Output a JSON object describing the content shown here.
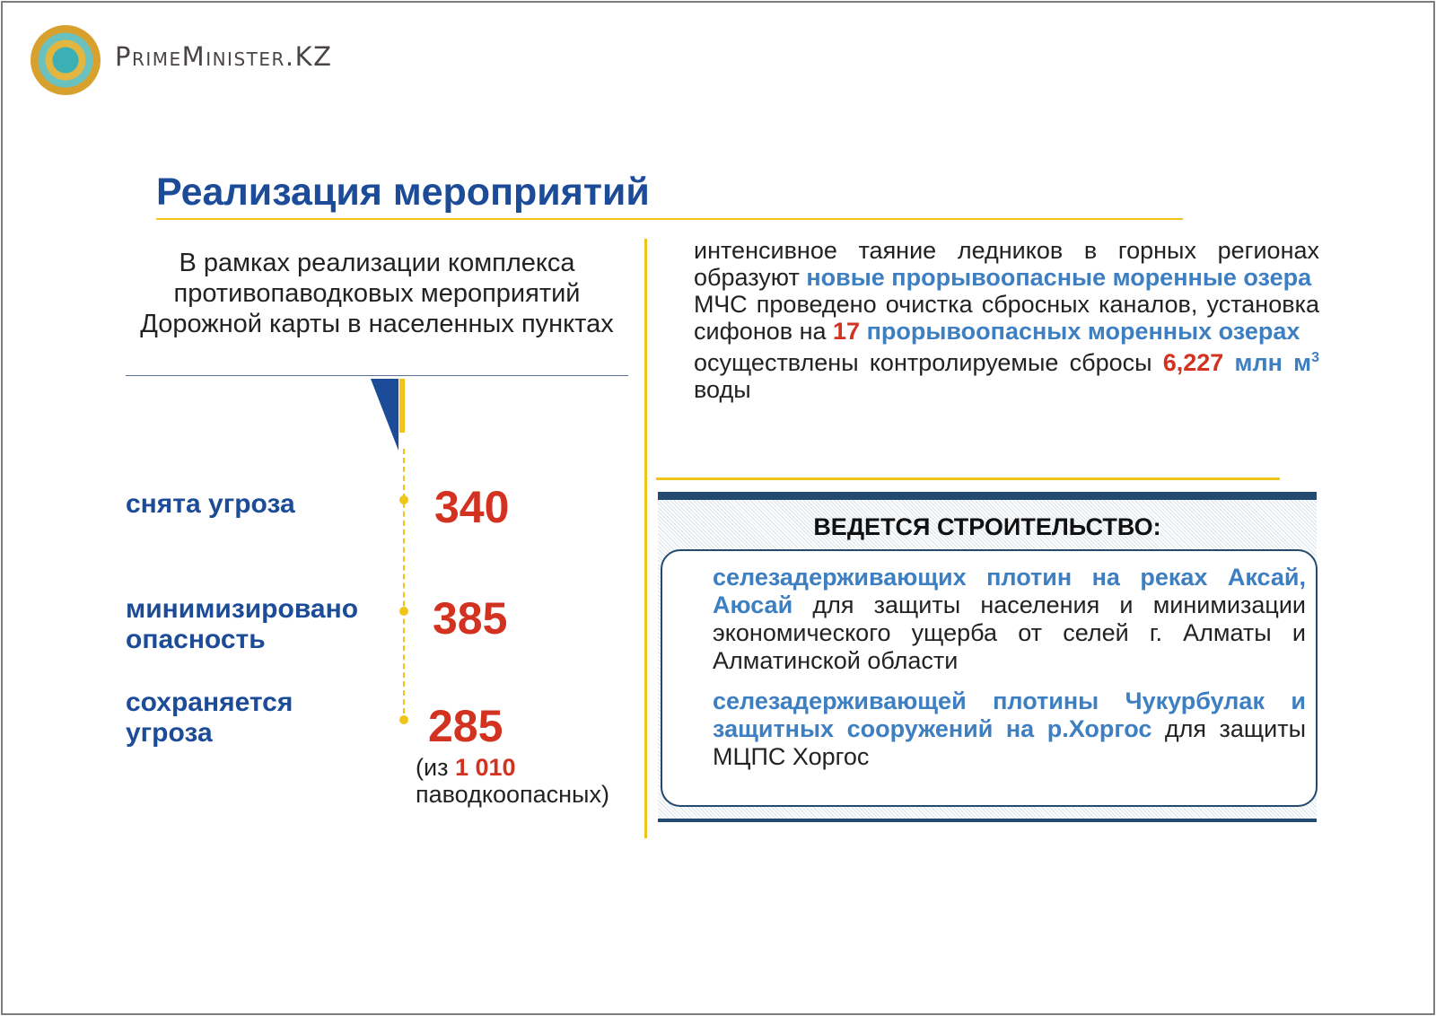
{
  "header": {
    "brand": "PrimeMinister.KZ",
    "logo_icon": "kazakhstan-emblem-icon"
  },
  "title": "Реализация мероприятий",
  "intro": "В рамках реализации комплекса противопаводковых мероприятий Дорожной карты в населенных пунктах",
  "stats": [
    {
      "label": "снята угроза",
      "value": "340"
    },
    {
      "label": "минимизировано опасность",
      "value": "385"
    },
    {
      "label": "сохраняется угроза",
      "value": "285"
    }
  ],
  "note": {
    "prefix": "(из ",
    "total": "1 010",
    "suffix": "паводкоопасных)"
  },
  "right": {
    "p1_a": "интенсивное таяние ледников в горных регионах образуют ",
    "p1_b": "новые прорывоопасные моренные озера",
    "p2_a": "МЧС проведено очистка сбросных каналов, установка сифонов на ",
    "p2_num": "17",
    "p2_b": " прорывоопасных моренных озерах",
    "p3_a": "осуществлены контролируемые сбросы ",
    "p3_num": "6,227",
    "p3_unit": " млн м",
    "p3_sup": "3",
    "p3_b": " воды"
  },
  "construction": {
    "heading": "ВЕДЕТСЯ СТРОИТЕЛЬСТВО:",
    "item1_a": "селезадерживающих плотин на реках Аксай, Аюсай",
    "item1_b": " для защиты населения и минимизации экономического ущерба от селей г. Алматы и Алматинской области",
    "item2_a": "селезадерживающей плотины Чукурбулак и защитных сооружений на р.Хоргос",
    "item2_b": " для защиты МЦПС Хоргос"
  },
  "colors": {
    "title_blue": "#1c4b98",
    "accent_yellow": "#f0c419",
    "number_red": "#d2321f",
    "highlight_blue": "#3d7fc1",
    "panel_navy": "#234a6f"
  }
}
